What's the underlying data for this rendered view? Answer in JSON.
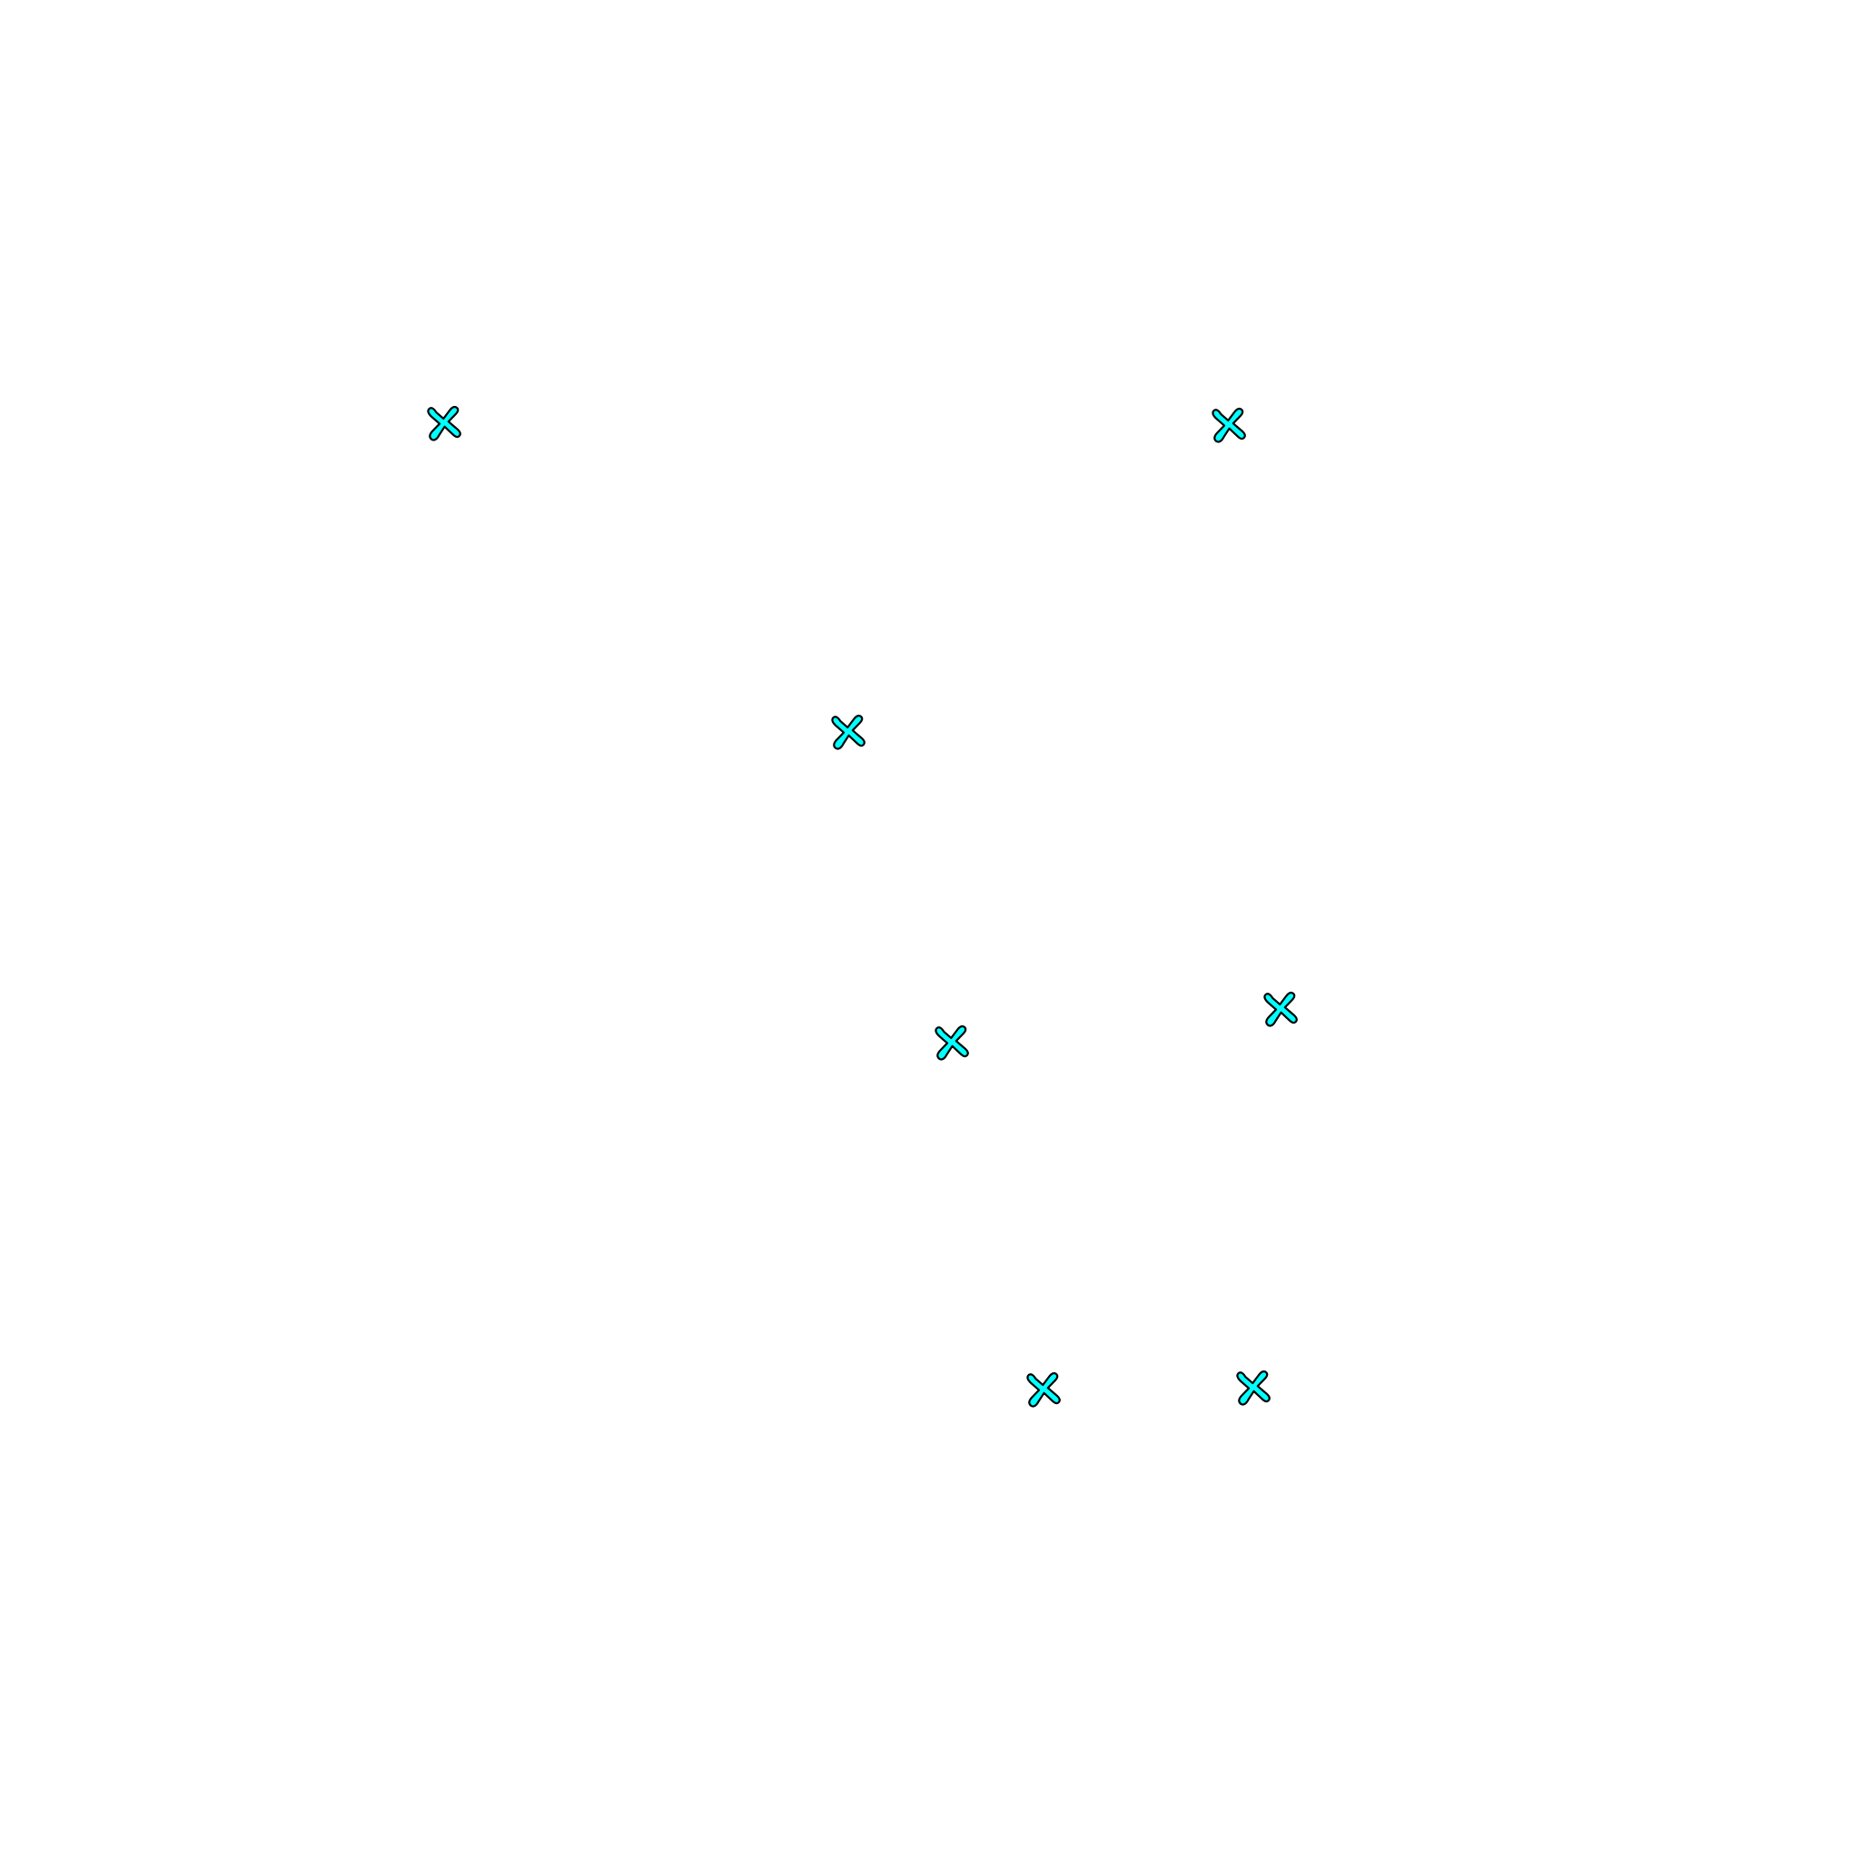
{
  "marker": {
    "icon": "cross-icon",
    "fill": "#00ffff",
    "stroke": "#000000",
    "count": 7
  }
}
